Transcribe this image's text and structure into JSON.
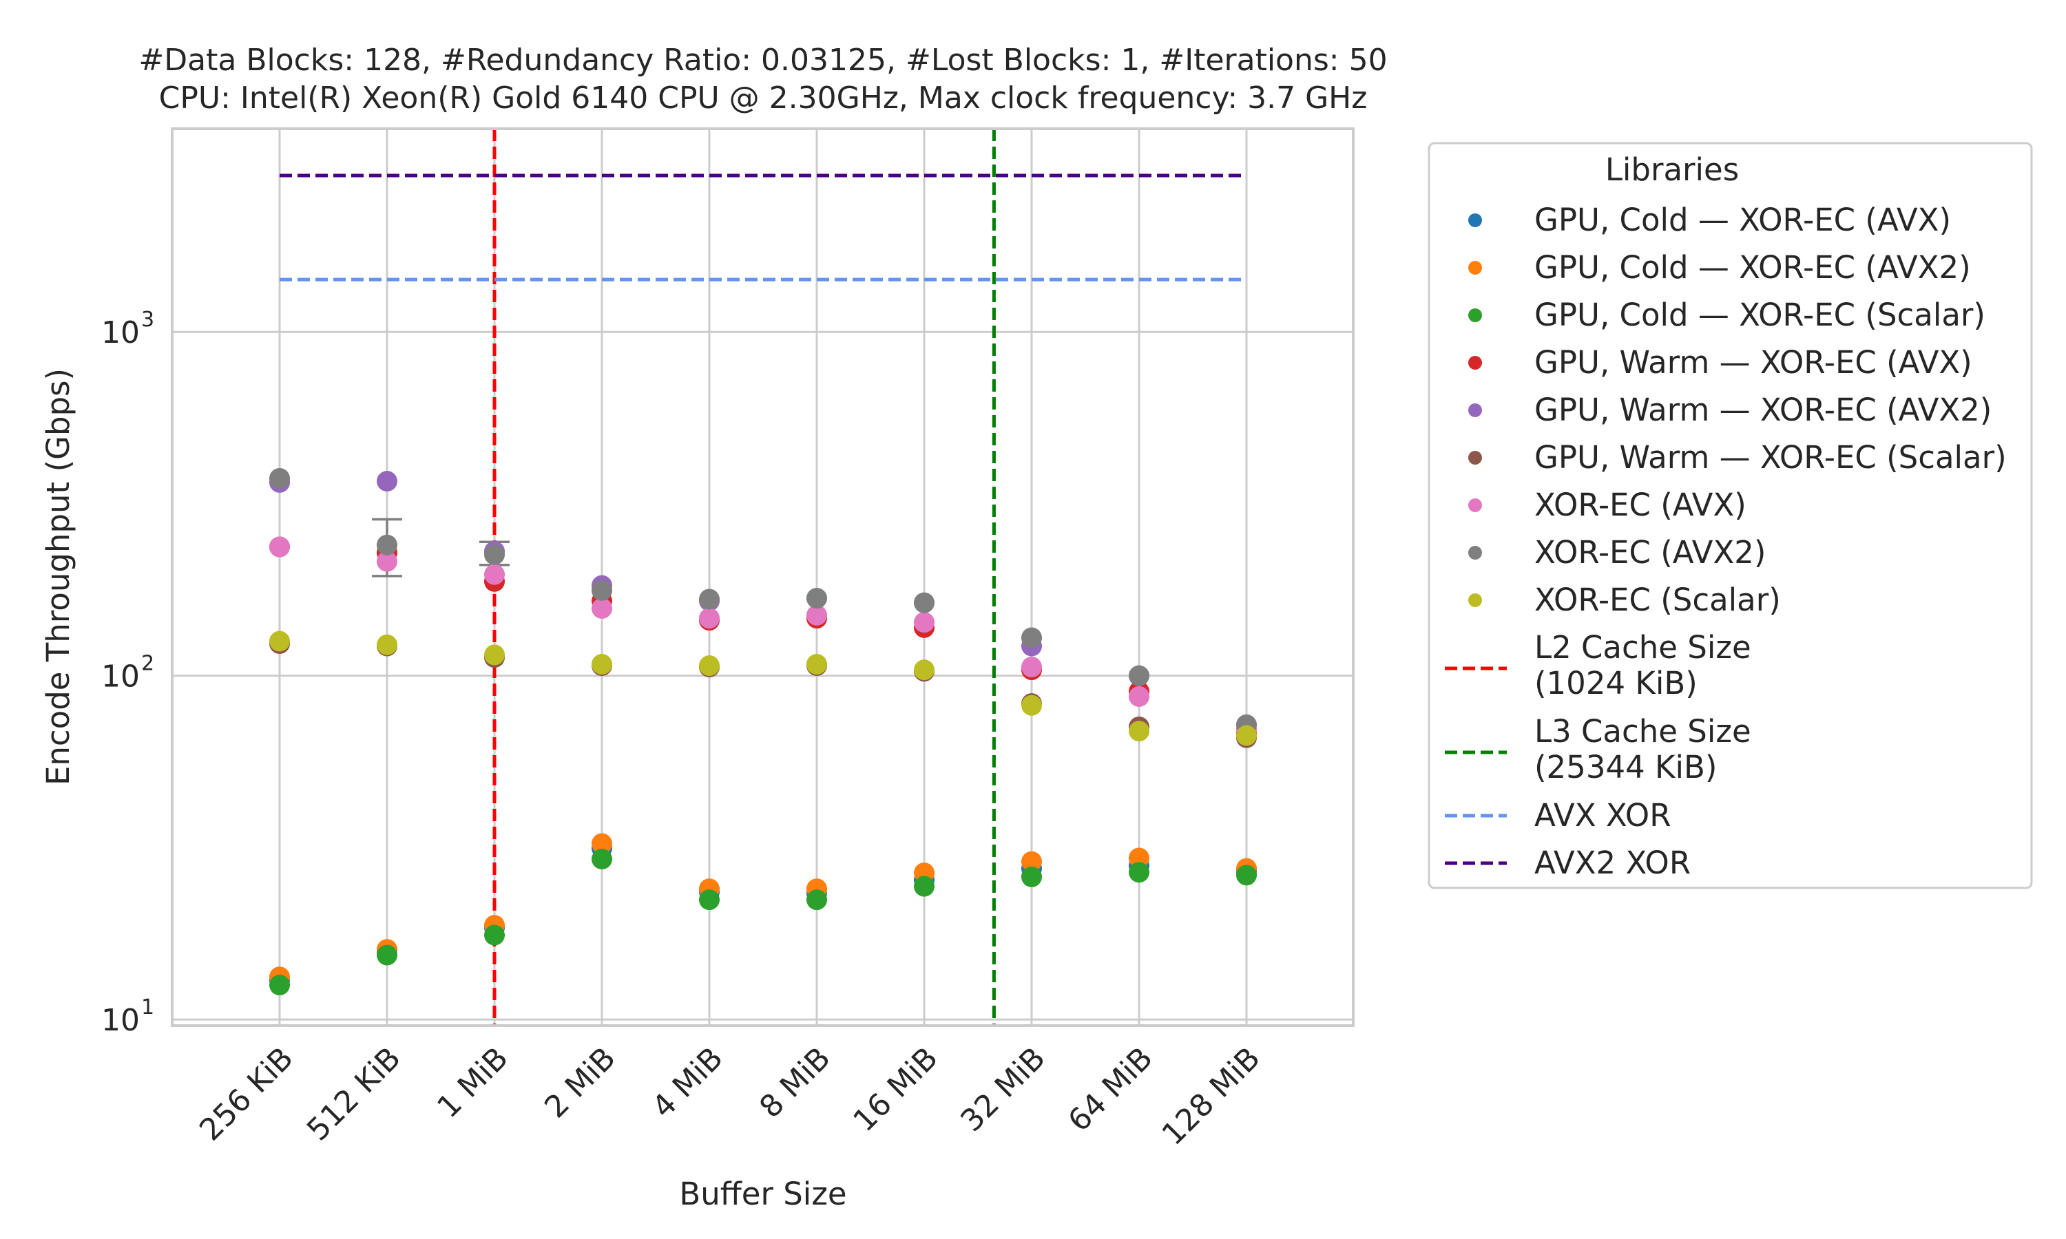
{
  "chart_data": {
    "type": "scatter",
    "title": "#Data Blocks: 128, #Redundancy Ratio: 0.03125, #Lost Blocks: 1, #Iterations: 50",
    "subtitle": "CPU: Intel(R) Xeon(R) Gold 6140 CPU @ 2.30GHz, Max clock frequency: 3.7 GHz",
    "xlabel": "Buffer Size",
    "ylabel": "Encode Throughput (Gbps)",
    "yscale": "log",
    "ylim": [
      9.6,
      3900
    ],
    "grid": true,
    "legend_title": "Libraries",
    "legend_position": "outside-right",
    "categories": [
      "256 KiB",
      "512 KiB",
      "1 MiB",
      "2 MiB",
      "4 MiB",
      "8 MiB",
      "16 MiB",
      "32 MiB",
      "64 MiB",
      "128 MiB"
    ],
    "yticks": [
      {
        "value": 10,
        "base": "10",
        "exp": "1"
      },
      {
        "value": 100,
        "base": "10",
        "exp": "2"
      },
      {
        "value": 1000,
        "base": "10",
        "exp": "3"
      }
    ],
    "series": [
      {
        "name": "GPU, Cold — XOR-EC (AVX)",
        "color": "#1f77b4",
        "values": [
          13,
          15.8,
          18.5,
          31.5,
          23.5,
          23.3,
          25.5,
          27.5,
          28,
          27
        ]
      },
      {
        "name": "GPU, Cold — XOR-EC (AVX2)",
        "color": "#ff7f0e",
        "values": [
          13.3,
          16,
          18.8,
          32.5,
          24,
          24,
          26.7,
          28.8,
          29.5,
          27.5
        ]
      },
      {
        "name": "GPU, Cold — XOR-EC (Scalar)",
        "color": "#2ca02c",
        "values": [
          12.6,
          15.4,
          17.6,
          29.3,
          22.3,
          22.3,
          24.4,
          26,
          26.8,
          26.3
        ]
      },
      {
        "name": "GPU, Warm — XOR-EC (AVX)",
        "color": "#d62728",
        "values": [
          237,
          228,
          188,
          165,
          145,
          147,
          138,
          104,
          90,
          68
        ]
      },
      {
        "name": "GPU, Warm — XOR-EC (AVX2)",
        "color": "#9467bd",
        "values": [
          365,
          368,
          230,
          183,
          165,
          168,
          163,
          122,
          100,
          72
        ]
      },
      {
        "name": "GPU, Warm — XOR-EC (Scalar)",
        "color": "#8c564b",
        "values": [
          124,
          122,
          113,
          107,
          106,
          107,
          103,
          83,
          71,
          66
        ]
      },
      {
        "name": "XOR-EC (AVX)",
        "color": "#e377c2",
        "values": [
          237,
          215,
          197,
          157,
          147,
          150,
          143,
          106,
          87,
          70
        ]
      },
      {
        "name": "XOR-EC (AVX2)",
        "color": "#7f7f7f",
        "values": [
          375,
          240,
          225,
          177,
          167,
          168,
          163,
          129,
          100,
          72
        ]
      },
      {
        "name": "XOR-EC (Scalar)",
        "color": "#bcbd22",
        "values": [
          126,
          123,
          115,
          108,
          107,
          108,
          104,
          82,
          69,
          67
        ]
      }
    ],
    "error_bars": [
      {
        "series": "XOR-EC (AVX2)",
        "category": "512 KiB",
        "low": 195,
        "high": 285
      },
      {
        "series": "XOR-EC (AVX2)",
        "category": "1 MiB",
        "low": 210,
        "high": 245
      }
    ],
    "reference_lines": [
      {
        "name": "L2 Cache Size\n(1024 KiB)",
        "orientation": "vertical",
        "category": "1 MiB",
        "color": "#ff0000"
      },
      {
        "name": "L3 Cache Size\n(25344 KiB)",
        "orientation": "vertical",
        "between": [
          "16 MiB",
          "32 MiB"
        ],
        "fraction": 0.65,
        "color": "#008000"
      },
      {
        "name": "AVX XOR",
        "orientation": "horizontal",
        "value": 1420,
        "color": "#6495ed"
      },
      {
        "name": "AVX2 XOR",
        "orientation": "horizontal",
        "value": 2850,
        "color": "#4b0082"
      }
    ]
  }
}
